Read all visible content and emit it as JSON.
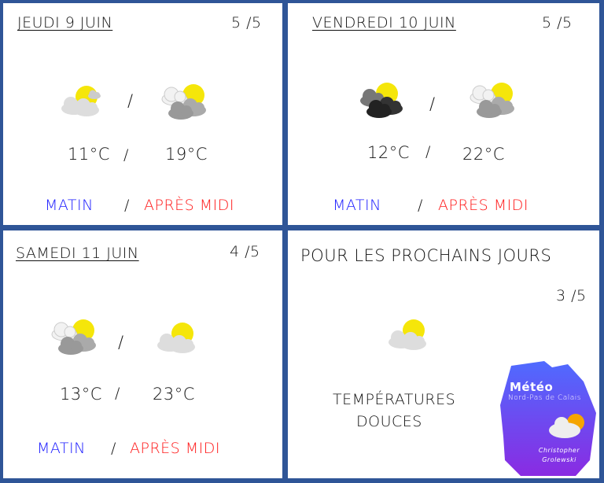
{
  "days": [
    {
      "title": "JEUDI 9 JUIN",
      "rating": "5 /5",
      "morning_icon": "partly-sunny-light-cloud-icon",
      "afternoon_icon": "partly-sunny-grey-clouds-icon",
      "morning_temp": "11°C",
      "afternoon_temp": "19°C",
      "sep": "/",
      "morning_label": "MATIN",
      "afternoon_label": "APRÈS MIDI"
    },
    {
      "title": "VENDREDI 10 JUIN",
      "rating": "5 /5",
      "morning_icon": "partly-sunny-dark-clouds-icon",
      "afternoon_icon": "partly-sunny-grey-clouds-icon",
      "morning_temp": "12°C",
      "afternoon_temp": "22°C",
      "sep": "/",
      "morning_label": "MATIN",
      "afternoon_label": "APRÈS MIDI"
    },
    {
      "title": "SAMEDI 11 JUIN",
      "rating": "4 /5",
      "morning_icon": "partly-sunny-grey-clouds-icon",
      "afternoon_icon": "partly-sunny-light-cloud-icon",
      "morning_temp": "13°C",
      "afternoon_temp": "23°C",
      "sep": "/",
      "morning_label": "MATIN",
      "afternoon_label": "APRÈS MIDI"
    }
  ],
  "outlook": {
    "title": "POUR LES PROCHAINS JOURS",
    "rating": "3 /5",
    "icon": "partly-sunny-light-cloud-icon",
    "text_line1": "TEMPÉRATURES",
    "text_line2": "DOUCES"
  },
  "logo": {
    "title": "Météo",
    "subtitle": "Nord-Pas de Calais",
    "author": "Christopher Grolewski"
  },
  "colors": {
    "border": "#2f5597",
    "morning": "#1a1aff",
    "afternoon": "#ff1a1a",
    "sun": "#f5e60a"
  }
}
